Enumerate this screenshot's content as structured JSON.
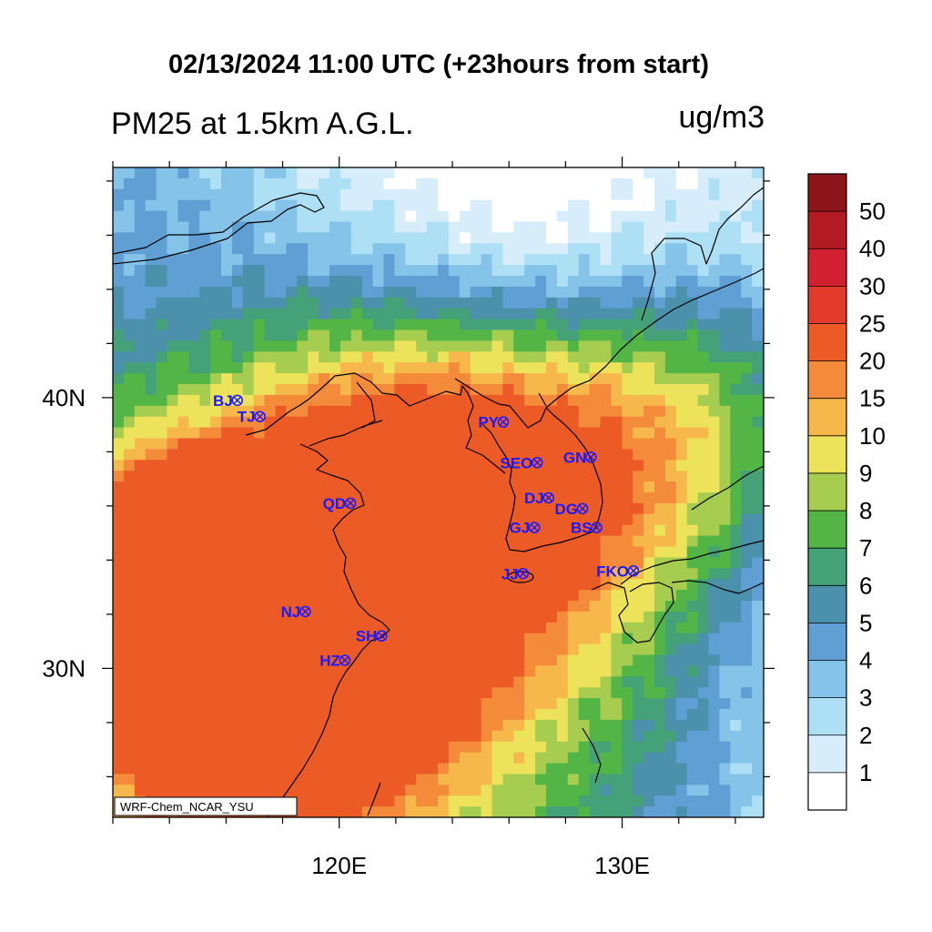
{
  "title": "02/13/2024 11:00 UTC (+23hours from start)",
  "subtitle_left": "PM25 at 1.5km A.G.L.",
  "subtitle_right": "ug/m3",
  "credit": "WRF-Chem_NCAR_YSU",
  "axes": {
    "lon_range": [
      112,
      135
    ],
    "lat_range": [
      24.5,
      48.5
    ],
    "x_ticks": [
      {
        "lon": 120,
        "label": "120E"
      },
      {
        "lon": 130,
        "label": "130E"
      }
    ],
    "y_ticks": [
      {
        "lat": 30,
        "label": "30N"
      },
      {
        "lat": 40,
        "label": "40N"
      }
    ],
    "minor_lons": [
      112,
      114,
      116,
      118,
      122,
      124,
      126,
      128,
      132,
      134
    ],
    "minor_lats": [
      26,
      28,
      32,
      34,
      36,
      38,
      42,
      44,
      46,
      48
    ]
  },
  "colorbar": {
    "bins": [
      {
        "color": "#ffffff",
        "label": "1"
      },
      {
        "color": "#d7eefa",
        "label": "2"
      },
      {
        "color": "#ade0f4",
        "label": "3"
      },
      {
        "color": "#86c3e9",
        "label": "4"
      },
      {
        "color": "#5f9fd3",
        "label": "5"
      },
      {
        "color": "#4b91ab",
        "label": "6"
      },
      {
        "color": "#45a278",
        "label": "7"
      },
      {
        "color": "#52b546",
        "label": "8"
      },
      {
        "color": "#a7cd50",
        "label": "9"
      },
      {
        "color": "#ece35a",
        "label": "10"
      },
      {
        "color": "#f6b84a",
        "label": "15"
      },
      {
        "color": "#f38b3a",
        "label": "20"
      },
      {
        "color": "#ec5a26",
        "label": "25"
      },
      {
        "color": "#e23b2c",
        "label": "30"
      },
      {
        "color": "#d32030",
        "label": "40"
      },
      {
        "color": "#b31b24",
        "label": "50"
      },
      {
        "color": "#8b1519",
        "label": ""
      }
    ]
  },
  "cities": [
    {
      "id": "BJ",
      "label": "BJ",
      "lon": 116.4,
      "lat": 39.9
    },
    {
      "id": "TJ",
      "label": "TJ",
      "lon": 117.2,
      "lat": 39.3
    },
    {
      "id": "PY",
      "label": "PY",
      "lon": 125.8,
      "lat": 39.1
    },
    {
      "id": "SEO",
      "label": "SEO",
      "lon": 127.0,
      "lat": 37.6
    },
    {
      "id": "GN",
      "label": "GN",
      "lon": 128.9,
      "lat": 37.8
    },
    {
      "id": "QD",
      "label": "QD",
      "lon": 120.4,
      "lat": 36.1
    },
    {
      "id": "DJ",
      "label": "DJ",
      "lon": 127.4,
      "lat": 36.3
    },
    {
      "id": "DG",
      "label": "DG",
      "lon": 128.6,
      "lat": 35.9
    },
    {
      "id": "GJ",
      "label": "GJ",
      "lon": 126.9,
      "lat": 35.2
    },
    {
      "id": "BS",
      "label": "BS",
      "lon": 129.1,
      "lat": 35.2
    },
    {
      "id": "JJ",
      "label": "JJ",
      "lon": 126.5,
      "lat": 33.5
    },
    {
      "id": "FKO",
      "label": "FKO",
      "lon": 130.4,
      "lat": 33.6
    },
    {
      "id": "NJ",
      "label": "NJ",
      "lon": 118.8,
      "lat": 32.1
    },
    {
      "id": "SH",
      "label": "SH",
      "lon": 121.5,
      "lat": 31.2
    },
    {
      "id": "HZ",
      "label": "HZ",
      "lon": 120.2,
      "lat": 30.3
    }
  ]
}
